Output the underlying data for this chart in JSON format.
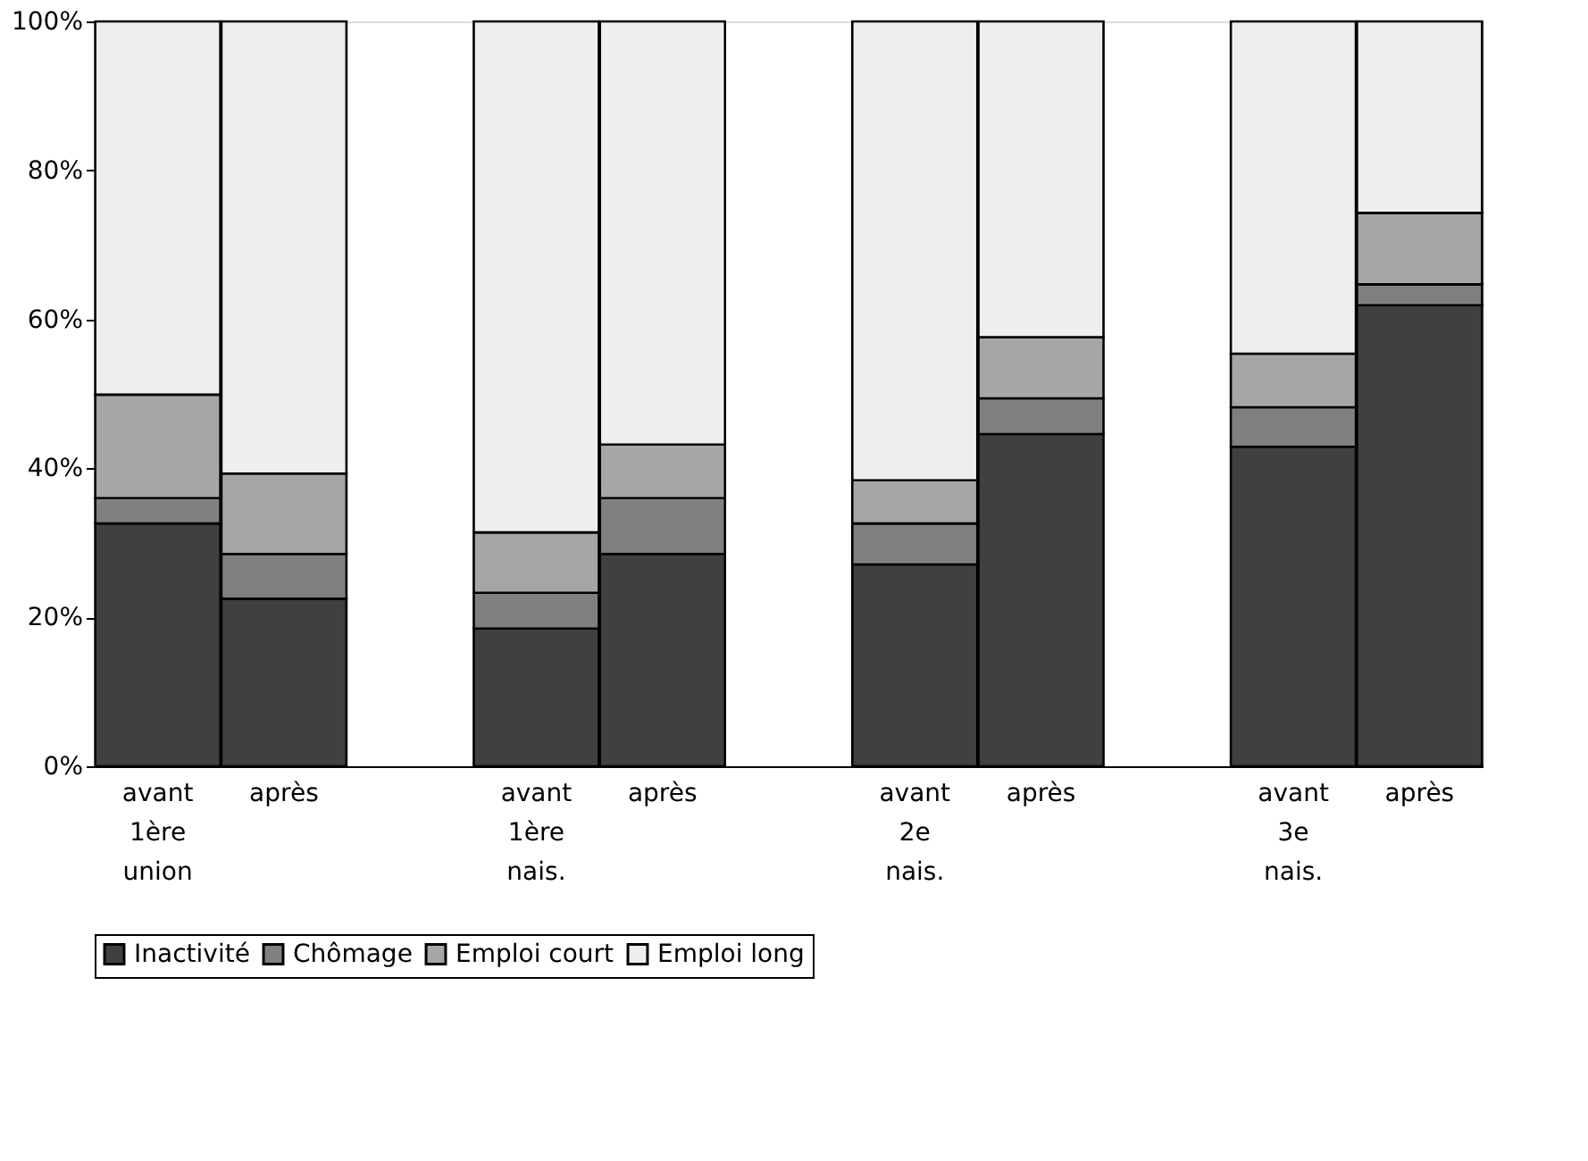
{
  "chart_data": {
    "type": "bar",
    "stacked": true,
    "legend": "bottom",
    "grid": false,
    "categories": [
      "avant 1ère union",
      "après",
      null,
      "avant 1ère nais.",
      "après",
      null,
      "avant 2e nais.",
      "après",
      null,
      "avant 3e nais.",
      "après"
    ],
    "ylim": [
      0,
      100
    ],
    "yticks": [
      {
        "value": 0,
        "label": "0%"
      },
      {
        "value": 20,
        "label": "20%"
      },
      {
        "value": 40,
        "label": "40%"
      },
      {
        "value": 60,
        "label": "60%"
      },
      {
        "value": 80,
        "label": "80%"
      },
      {
        "value": 100,
        "label": "100%"
      }
    ],
    "series": [
      {
        "name": "Inactivité",
        "color": "#404040",
        "values": [
          32.6,
          22.5,
          null,
          18.5,
          28.5,
          null,
          27.1,
          44.6,
          null,
          42.9,
          61.9
        ]
      },
      {
        "name": "Chômage",
        "color": "#808080",
        "values": [
          3.4,
          6.0,
          null,
          4.8,
          7.5,
          null,
          5.5,
          4.8,
          null,
          5.3,
          2.8
        ]
      },
      {
        "name": "Emploi court",
        "color": "#a6a6a6",
        "values": [
          13.9,
          10.8,
          null,
          8.1,
          7.2,
          null,
          5.8,
          8.2,
          null,
          7.2,
          9.6
        ]
      },
      {
        "name": "Emploi long",
        "color": "#eeeeee",
        "values": [
          50.1,
          60.7,
          null,
          68.6,
          56.8,
          null,
          61.6,
          42.4,
          null,
          44.6,
          25.7
        ]
      }
    ]
  }
}
